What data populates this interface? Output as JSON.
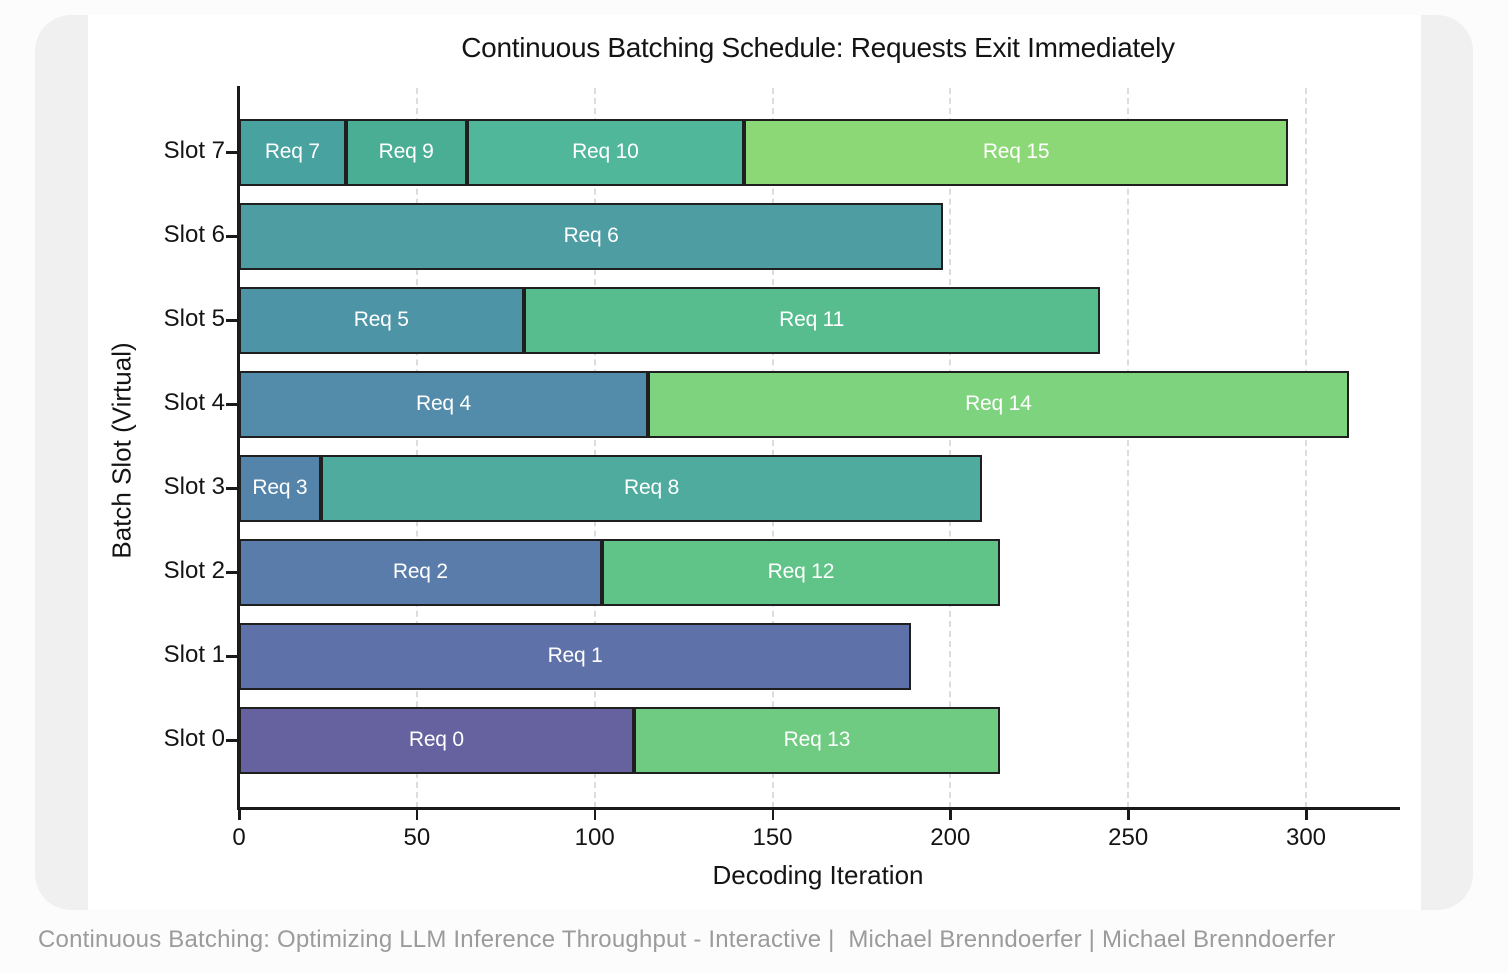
{
  "page": {
    "footer_text": "Continuous Batching: Optimizing LLM Inference Throughput - Interactive |  Michael Brenndoerfer | Michael Brenndoerfer"
  },
  "chart_data": {
    "type": "bar",
    "orientation": "horizontal-stacked-gantt",
    "title": "Continuous Batching Schedule: Requests Exit Immediately",
    "xlabel": "Decoding Iteration",
    "ylabel": "Batch Slot (Virtual)",
    "xlim": [
      0,
      326
    ],
    "x_ticks": [
      0,
      50,
      100,
      150,
      200,
      250,
      300
    ],
    "grid": "vertical-dashed",
    "bar_border_color": "#1f1f1f",
    "label_color": "#ffffff",
    "slots": [
      {
        "label": "Slot 0",
        "segments": [
          {
            "name": "Req 0",
            "start": 0,
            "end": 111,
            "color": "#66619f"
          },
          {
            "name": "Req 13",
            "start": 111,
            "end": 214,
            "color": "#6fcb81"
          }
        ]
      },
      {
        "label": "Slot 1",
        "segments": [
          {
            "name": "Req 1",
            "start": 0,
            "end": 189,
            "color": "#5e71a8"
          }
        ]
      },
      {
        "label": "Slot 2",
        "segments": [
          {
            "name": "Req 2",
            "start": 0,
            "end": 102,
            "color": "#597caa"
          },
          {
            "name": "Req 12",
            "start": 102,
            "end": 214,
            "color": "#60c489"
          }
        ]
      },
      {
        "label": "Slot 3",
        "segments": [
          {
            "name": "Req 3",
            "start": 0,
            "end": 23,
            "color": "#5584aa"
          },
          {
            "name": "Req 8",
            "start": 23,
            "end": 209,
            "color": "#4fab9e"
          }
        ]
      },
      {
        "label": "Slot 4",
        "segments": [
          {
            "name": "Req 4",
            "start": 0,
            "end": 115,
            "color": "#538caa"
          },
          {
            "name": "Req 14",
            "start": 115,
            "end": 312,
            "color": "#7ed47e"
          }
        ]
      },
      {
        "label": "Slot 5",
        "segments": [
          {
            "name": "Req 5",
            "start": 0,
            "end": 80,
            "color": "#4e94a7"
          },
          {
            "name": "Req 11",
            "start": 80,
            "end": 242,
            "color": "#57bd8e"
          }
        ]
      },
      {
        "label": "Slot 6",
        "segments": [
          {
            "name": "Req 6",
            "start": 0,
            "end": 198,
            "color": "#4d9da3"
          }
        ]
      },
      {
        "label": "Slot 7",
        "segments": [
          {
            "name": "Req 7",
            "start": 0,
            "end": 30,
            "color": "#48a2a0"
          },
          {
            "name": "Req 9",
            "start": 30,
            "end": 64,
            "color": "#4aae95"
          },
          {
            "name": "Req 10",
            "start": 64,
            "end": 142,
            "color": "#50b79b"
          },
          {
            "name": "Req 15",
            "start": 142,
            "end": 295,
            "color": "#8cd877"
          }
        ]
      }
    ]
  }
}
